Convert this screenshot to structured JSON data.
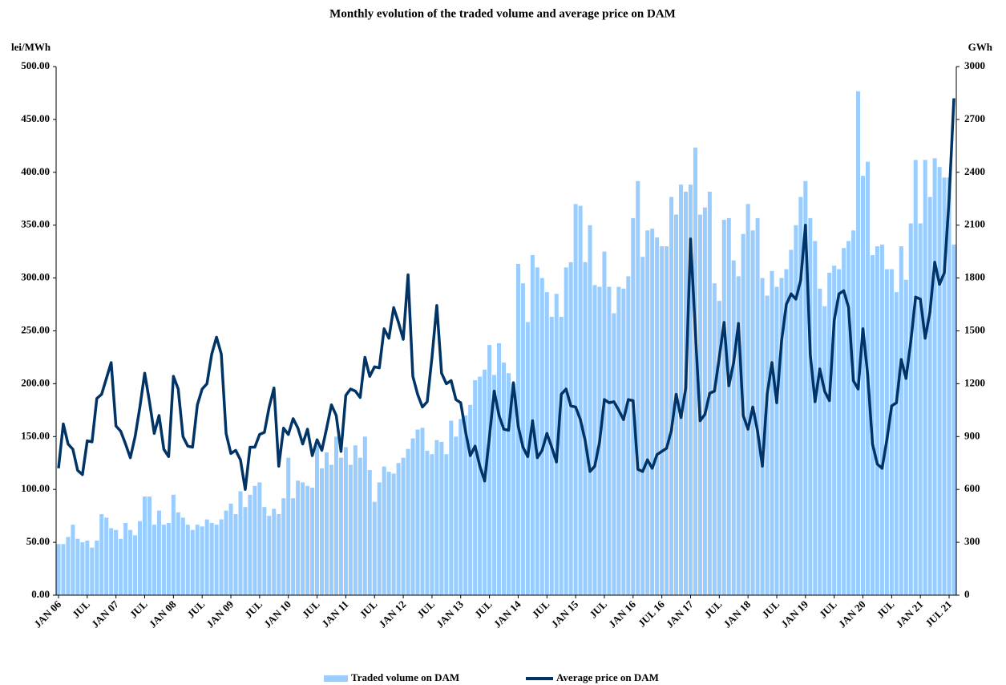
{
  "chart_data": {
    "type": "bar_line",
    "title": "Monthly evolution of the traded volume and average price on DAM",
    "y_label": "lei/MWh",
    "y2_label": "GWh",
    "categories": [
      "JAN 06",
      null,
      null,
      null,
      null,
      null,
      "JUL",
      null,
      null,
      null,
      null,
      null,
      "JAN 07",
      null,
      null,
      null,
      null,
      null,
      "JUL",
      null,
      null,
      null,
      null,
      null,
      "JAN 08",
      null,
      null,
      null,
      null,
      null,
      "JUL",
      null,
      null,
      null,
      null,
      null,
      "JAN 09",
      null,
      null,
      null,
      null,
      null,
      "JUL",
      null,
      null,
      null,
      null,
      null,
      "JAN 10",
      null,
      null,
      null,
      null,
      null,
      "JUL",
      null,
      null,
      null,
      null,
      null,
      "JAN 11",
      null,
      null,
      null,
      null,
      null,
      "JUL",
      null,
      null,
      null,
      null,
      null,
      "JAN 12",
      null,
      null,
      null,
      null,
      null,
      "JUL",
      null,
      null,
      null,
      null,
      null,
      "JAN 13",
      null,
      null,
      null,
      null,
      null,
      "JUL",
      null,
      null,
      null,
      null,
      null,
      "JAN 14",
      null,
      null,
      null,
      null,
      null,
      "JUL",
      null,
      null,
      null,
      null,
      null,
      "JAN 15",
      null,
      null,
      null,
      null,
      null,
      "JUL",
      null,
      null,
      null,
      null,
      null,
      "JAN 16",
      null,
      null,
      null,
      null,
      null,
      "JUL 16",
      null,
      null,
      null,
      null,
      null,
      "JAN 17",
      null,
      null,
      null,
      null,
      null,
      "JUL",
      null,
      null,
      null,
      null,
      null,
      "JAN 18",
      null,
      null,
      null,
      null,
      null,
      "JUL",
      null,
      null,
      null,
      null,
      null,
      "JAN 19",
      null,
      null,
      null,
      null,
      null,
      "JUL",
      null,
      null,
      null,
      null,
      null,
      "JAN 20",
      null,
      null,
      null,
      null,
      null,
      "JUL",
      null,
      null,
      null,
      null,
      null,
      "JAN 21",
      null,
      null,
      null,
      null,
      null,
      "JUL 21",
      null
    ],
    "series": [
      {
        "name": "Traded volume on DAM",
        "color": "#99ccff",
        "kind": "bar",
        "axis": "y2",
        "values": [
          290,
          290,
          330,
          400,
          320,
          300,
          310,
          270,
          310,
          460,
          440,
          380,
          370,
          320,
          410,
          370,
          340,
          420,
          560,
          560,
          400,
          480,
          400,
          410,
          570,
          470,
          440,
          400,
          370,
          400,
          390,
          430,
          410,
          400,
          430,
          480,
          520,
          460,
          590,
          500,
          570,
          620,
          640,
          500,
          450,
          490,
          460,
          550,
          780,
          550,
          650,
          640,
          620,
          610,
          850,
          720,
          810,
          740,
          900,
          780,
          840,
          740,
          850,
          780,
          900,
          710,
          530,
          640,
          730,
          700,
          690,
          750,
          780,
          830,
          890,
          940,
          950,
          820,
          800,
          880,
          870,
          800,
          990,
          900,
          1000,
          1020,
          1080,
          1220,
          1240,
          1280,
          1420,
          1250,
          1430,
          1320,
          1260,
          1200,
          1880,
          1770,
          1550,
          1930,
          1860,
          1800,
          1720,
          1580,
          1710,
          1580,
          1860,
          1890,
          2220,
          2210,
          1890,
          2100,
          1760,
          1750,
          1950,
          1750,
          1600,
          1750,
          1740,
          1810,
          2140,
          2350,
          1920,
          2070,
          2080,
          2030,
          1980,
          1980,
          2260,
          2160,
          2330,
          2290,
          2330,
          2540,
          2160,
          2200,
          2290,
          1770,
          1670,
          2130,
          2140,
          1900,
          1810,
          2050,
          2220,
          2070,
          2140,
          1800,
          1700,
          1840,
          1750,
          1800,
          1850,
          1960,
          2100,
          2260,
          2350,
          2140,
          2010,
          1740,
          1640,
          1830,
          1870,
          1850,
          1970,
          2010,
          2070,
          2860,
          2380,
          2460,
          1930,
          1980,
          1990,
          1850,
          1850,
          1720,
          1980,
          1790,
          2110,
          2470,
          2110,
          2470,
          2260,
          2480,
          2430,
          2370,
          2370,
          1990
        ]
      },
      {
        "name": "Average price on DAM",
        "color": "#003366",
        "kind": "line",
        "values": [
          120,
          162,
          143,
          138,
          118,
          114,
          146,
          145,
          186,
          190,
          205,
          220,
          160,
          155,
          143,
          130,
          150,
          178,
          210,
          183,
          153,
          170,
          138,
          131,
          207,
          195,
          150,
          141,
          140,
          180,
          195,
          200,
          228,
          244,
          228,
          153,
          134,
          137,
          128,
          100,
          140,
          140,
          152,
          154,
          178,
          196,
          122,
          158,
          152,
          167,
          158,
          143,
          157,
          132,
          147,
          137,
          158,
          180,
          170,
          136,
          189,
          195,
          193,
          187,
          225,
          207,
          216,
          215,
          252,
          243,
          272,
          258,
          242,
          303,
          207,
          190,
          178,
          183,
          225,
          274,
          210,
          200,
          203,
          185,
          182,
          155,
          132,
          141,
          122,
          108,
          150,
          193,
          170,
          157,
          156,
          201,
          160,
          140,
          131,
          165,
          130,
          137,
          153,
          140,
          126,
          190,
          195,
          179,
          178,
          166,
          146,
          117,
          122,
          145,
          185,
          182,
          183,
          175,
          166,
          185,
          184,
          119,
          117,
          128,
          120,
          133,
          136,
          139,
          156,
          190,
          168,
          196,
          337,
          250,
          165,
          171,
          191,
          193,
          225,
          258,
          198,
          220,
          257,
          170,
          157,
          178,
          155,
          122,
          190,
          220,
          182,
          240,
          275,
          285,
          280,
          298,
          350,
          228,
          183,
          214,
          193,
          184,
          260,
          285,
          288,
          272,
          203,
          195,
          252,
          208,
          143,
          124,
          120,
          147,
          179,
          182,
          223,
          205,
          240,
          282,
          280,
          243,
          268,
          315,
          294,
          305,
          375,
          470
        ]
      }
    ],
    "ylim": [
      0,
      500
    ],
    "yticks": [
      {
        "value": 0,
        "label": "0.00"
      },
      {
        "value": 50,
        "label": "50.00"
      },
      {
        "value": 100,
        "label": "100.00"
      },
      {
        "value": 150,
        "label": "150.00"
      },
      {
        "value": 200,
        "label": "200.00"
      },
      {
        "value": 250,
        "label": "250.00"
      },
      {
        "value": 300,
        "label": "300.00"
      },
      {
        "value": 350,
        "label": "350.00"
      },
      {
        "value": 400,
        "label": "400.00"
      },
      {
        "value": 450,
        "label": "450.00"
      },
      {
        "value": 500,
        "label": "500.00"
      }
    ],
    "y2lim": [
      0,
      3000
    ],
    "y2ticks": [
      0,
      300,
      600,
      900,
      1200,
      1500,
      1800,
      2100,
      2400,
      2700,
      3000
    ],
    "grid": false,
    "legend": "bottom"
  }
}
